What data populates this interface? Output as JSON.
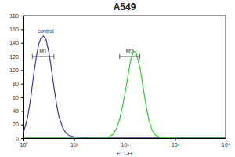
{
  "chart_data": {
    "type": "line",
    "title": "A549",
    "x_label": "FL1-H",
    "log": "x",
    "x": [
      1,
      1.2,
      1.4,
      1.6,
      1.8,
      2,
      2.2,
      2.5,
      2.8,
      3.2,
      3.6,
      4,
      4.5,
      5,
      6,
      7,
      8,
      10,
      15,
      20,
      30,
      40,
      50,
      60,
      70,
      80,
      90,
      100,
      115,
      130,
      150,
      170,
      200,
      230,
      260,
      300,
      350,
      400,
      500,
      1000,
      10000
    ],
    "series": [
      {
        "name": "control",
        "color": "#3b3ba6",
        "values": [
          8,
          30,
          60,
          95,
          120,
          138,
          147,
          150,
          145,
          125,
          100,
          75,
          50,
          32,
          15,
          7,
          4,
          2,
          1,
          0,
          0,
          0,
          0,
          0,
          0,
          0,
          0,
          0,
          0,
          0,
          0,
          0,
          0,
          0,
          0,
          0,
          0,
          0,
          0,
          0,
          0
        ]
      },
      {
        "color": "#33cc33",
        "values": [
          0,
          0,
          0,
          0,
          0,
          0,
          0,
          0,
          0,
          0,
          0,
          0,
          0,
          0,
          0,
          0,
          0,
          0,
          0,
          0,
          0,
          0,
          2,
          6,
          15,
          28,
          45,
          62,
          88,
          112,
          128,
          125,
          105,
          78,
          52,
          28,
          12,
          5,
          1,
          0,
          0
        ]
      }
    ],
    "markers": [
      {
        "label": "M1",
        "range": [
          1.5,
          4
        ],
        "y": 120
      },
      {
        "label": "M2",
        "range": [
          80,
          200
        ],
        "y": 120
      }
    ],
    "xlim": [
      1,
      10000
    ],
    "xticks": [
      {
        "value": 1,
        "label": "10⁰"
      },
      {
        "value": 10,
        "label": "10¹"
      },
      {
        "value": 100,
        "label": "10²"
      },
      {
        "value": 1000,
        "label": "10³"
      },
      {
        "value": 10000,
        "label": "10⁴"
      }
    ],
    "ylim": [
      0,
      180
    ],
    "yticks": [
      0,
      20,
      40,
      60,
      80,
      100,
      120,
      140,
      160,
      180
    ]
  }
}
